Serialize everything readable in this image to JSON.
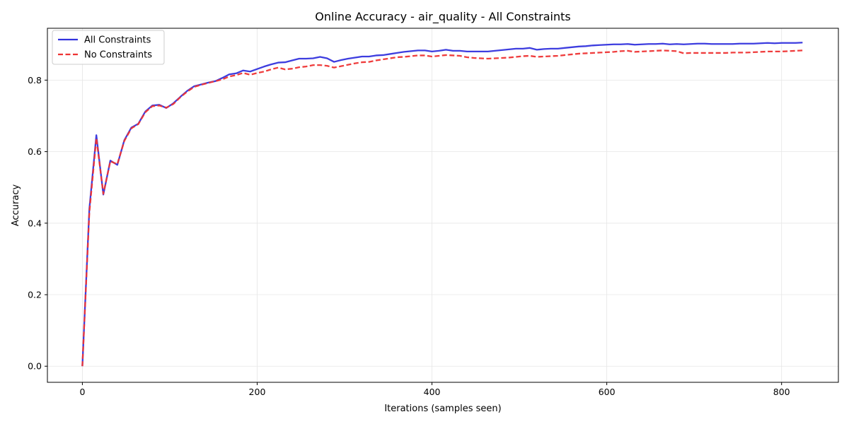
{
  "chart_data": {
    "type": "line",
    "title": "Online Accuracy - air_quality - All Constraints",
    "xlabel": "Iterations (samples seen)",
    "ylabel": "Accuracy",
    "xlim": [
      -40,
      865
    ],
    "ylim": [
      -0.045,
      0.945
    ],
    "xticks": [
      0,
      200,
      400,
      600,
      800
    ],
    "xtick_labels": [
      "0",
      "200",
      "400",
      "600",
      "800"
    ],
    "yticks": [
      0.0,
      0.2,
      0.4,
      0.6,
      0.8
    ],
    "ytick_labels": [
      "0.0",
      "0.2",
      "0.4",
      "0.6",
      "0.8"
    ],
    "grid": true,
    "legend_position": "upper-left",
    "series": [
      {
        "name": "All Constraints",
        "color": "#3333dd",
        "style": "solid",
        "x": [
          0,
          8,
          16,
          24,
          32,
          40,
          48,
          56,
          64,
          72,
          80,
          88,
          96,
          104,
          112,
          120,
          128,
          136,
          144,
          152,
          160,
          168,
          176,
          184,
          192,
          200,
          208,
          216,
          224,
          232,
          240,
          248,
          256,
          264,
          272,
          280,
          288,
          296,
          304,
          312,
          320,
          328,
          336,
          344,
          352,
          360,
          368,
          376,
          384,
          392,
          400,
          408,
          416,
          424,
          432,
          440,
          448,
          456,
          464,
          472,
          480,
          488,
          496,
          504,
          512,
          520,
          528,
          536,
          544,
          552,
          560,
          568,
          576,
          584,
          592,
          600,
          608,
          616,
          624,
          632,
          640,
          648,
          656,
          664,
          672,
          680,
          688,
          696,
          704,
          712,
          720,
          728,
          736,
          744,
          752,
          760,
          768,
          776,
          784,
          792,
          800,
          808,
          816,
          824
        ],
        "values": [
          0.0,
          0.44,
          0.646,
          0.48,
          0.575,
          0.563,
          0.632,
          0.667,
          0.678,
          0.712,
          0.729,
          0.731,
          0.722,
          0.735,
          0.753,
          0.77,
          0.783,
          0.788,
          0.793,
          0.797,
          0.806,
          0.816,
          0.819,
          0.827,
          0.824,
          0.831,
          0.838,
          0.844,
          0.849,
          0.85,
          0.855,
          0.86,
          0.86,
          0.861,
          0.865,
          0.861,
          0.851,
          0.856,
          0.86,
          0.863,
          0.866,
          0.866,
          0.869,
          0.87,
          0.873,
          0.876,
          0.879,
          0.881,
          0.883,
          0.883,
          0.88,
          0.882,
          0.885,
          0.882,
          0.882,
          0.88,
          0.88,
          0.88,
          0.88,
          0.882,
          0.884,
          0.886,
          0.888,
          0.888,
          0.89,
          0.885,
          0.887,
          0.888,
          0.888,
          0.89,
          0.892,
          0.894,
          0.895,
          0.897,
          0.898,
          0.899,
          0.9,
          0.9,
          0.901,
          0.899,
          0.9,
          0.901,
          0.901,
          0.902,
          0.9,
          0.901,
          0.9,
          0.901,
          0.902,
          0.902,
          0.901,
          0.901,
          0.901,
          0.901,
          0.902,
          0.902,
          0.902,
          0.903,
          0.904,
          0.903,
          0.904,
          0.904,
          0.904,
          0.905
        ]
      },
      {
        "name": "No Constraints",
        "color": "#ee3333",
        "style": "dashed",
        "x": [
          0,
          8,
          16,
          24,
          32,
          40,
          48,
          56,
          64,
          72,
          80,
          88,
          96,
          104,
          112,
          120,
          128,
          136,
          144,
          152,
          160,
          168,
          176,
          184,
          192,
          200,
          208,
          216,
          224,
          232,
          240,
          248,
          256,
          264,
          272,
          280,
          288,
          296,
          304,
          312,
          320,
          328,
          336,
          344,
          352,
          360,
          368,
          376,
          384,
          392,
          400,
          408,
          416,
          424,
          432,
          440,
          448,
          456,
          464,
          472,
          480,
          488,
          496,
          504,
          512,
          520,
          528,
          536,
          544,
          552,
          560,
          568,
          576,
          584,
          592,
          600,
          608,
          616,
          624,
          632,
          640,
          648,
          656,
          664,
          672,
          680,
          688,
          696,
          704,
          712,
          720,
          728,
          736,
          744,
          752,
          760,
          768,
          776,
          784,
          792,
          800,
          808,
          816,
          824
        ],
        "values": [
          0.0,
          0.43,
          0.638,
          0.482,
          0.573,
          0.565,
          0.63,
          0.665,
          0.677,
          0.71,
          0.727,
          0.729,
          0.723,
          0.733,
          0.752,
          0.768,
          0.781,
          0.787,
          0.792,
          0.797,
          0.802,
          0.81,
          0.814,
          0.82,
          0.815,
          0.82,
          0.824,
          0.83,
          0.835,
          0.83,
          0.832,
          0.836,
          0.838,
          0.842,
          0.842,
          0.84,
          0.835,
          0.839,
          0.843,
          0.847,
          0.85,
          0.851,
          0.855,
          0.858,
          0.861,
          0.864,
          0.865,
          0.867,
          0.869,
          0.869,
          0.866,
          0.868,
          0.87,
          0.869,
          0.868,
          0.864,
          0.862,
          0.861,
          0.86,
          0.861,
          0.862,
          0.863,
          0.865,
          0.867,
          0.868,
          0.865,
          0.866,
          0.867,
          0.868,
          0.87,
          0.872,
          0.874,
          0.875,
          0.876,
          0.877,
          0.878,
          0.879,
          0.881,
          0.882,
          0.879,
          0.88,
          0.881,
          0.882,
          0.883,
          0.882,
          0.881,
          0.875,
          0.876,
          0.876,
          0.876,
          0.876,
          0.876,
          0.876,
          0.877,
          0.877,
          0.877,
          0.878,
          0.879,
          0.88,
          0.88,
          0.88,
          0.881,
          0.882,
          0.883
        ]
      }
    ]
  }
}
